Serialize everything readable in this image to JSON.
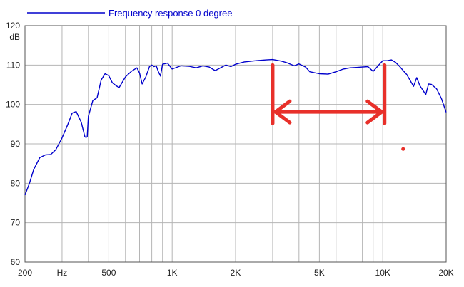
{
  "chart_data": {
    "type": "line",
    "title": "",
    "xlabel": "Hz",
    "ylabel": "dB",
    "x_scale": "log",
    "xlim": [
      200,
      20000
    ],
    "ylim": [
      60,
      120
    ],
    "grid": true,
    "legend": "top-left",
    "x_tick_labels": [
      {
        "value": 200,
        "label": "200"
      },
      {
        "value": 500,
        "label": "500"
      },
      {
        "value": 1000,
        "label": "1K"
      },
      {
        "value": 2000,
        "label": "2K"
      },
      {
        "value": 5000,
        "label": "5K"
      },
      {
        "value": 10000,
        "label": "10K"
      },
      {
        "value": 20000,
        "label": "20K"
      }
    ],
    "x_unit_label_at": 300,
    "x_gridlines": [
      200,
      300,
      400,
      500,
      600,
      700,
      800,
      900,
      1000,
      2000,
      3000,
      4000,
      5000,
      6000,
      7000,
      8000,
      9000,
      10000,
      20000
    ],
    "y_ticks": [
      60,
      70,
      80,
      90,
      100,
      110,
      120
    ],
    "y_tick_labels": [
      "60",
      "70",
      "80",
      "90",
      "100",
      "110",
      "120"
    ],
    "series": [
      {
        "name": "Frequency response 0 degree",
        "color": "#0000cc",
        "x": [
          200,
          210,
          220,
          235,
          250,
          265,
          280,
          300,
          320,
          335,
          350,
          370,
          385,
          390,
          395,
          400,
          420,
          440,
          460,
          480,
          500,
          520,
          540,
          560,
          600,
          640,
          680,
          700,
          720,
          750,
          780,
          800,
          820,
          840,
          860,
          880,
          900,
          950,
          1000,
          1100,
          1200,
          1300,
          1400,
          1500,
          1600,
          1800,
          1900,
          2000,
          2200,
          2500,
          2800,
          3000,
          3300,
          3500,
          3800,
          4000,
          4300,
          4500,
          5000,
          5500,
          6000,
          6500,
          7000,
          7500,
          8000,
          8500,
          9000,
          9500,
          10000,
          10500,
          11000,
          11500,
          12000,
          12500,
          13000,
          14000,
          14500,
          15000,
          16000,
          16500,
          17000,
          18000,
          19000,
          20000
        ],
        "values": [
          77.0,
          80.0,
          83.5,
          86.5,
          87.2,
          87.3,
          88.5,
          91.5,
          95.0,
          97.8,
          98.2,
          95.5,
          91.8,
          91.6,
          91.8,
          97.0,
          101.0,
          101.7,
          106.2,
          107.8,
          107.3,
          105.5,
          104.8,
          104.3,
          107.0,
          108.4,
          109.3,
          108.0,
          105.2,
          107.0,
          109.6,
          110.0,
          109.6,
          109.8,
          108.3,
          107.2,
          110.2,
          110.5,
          109.0,
          109.8,
          109.7,
          109.3,
          109.8,
          109.5,
          108.6,
          110.0,
          109.6,
          110.2,
          110.8,
          111.1,
          111.3,
          111.4,
          111.0,
          110.6,
          109.8,
          110.3,
          109.5,
          108.3,
          107.8,
          107.7,
          108.3,
          109.0,
          109.3,
          109.4,
          109.5,
          109.6,
          108.4,
          109.8,
          111.1,
          111.1,
          111.3,
          110.7,
          109.7,
          108.6,
          107.6,
          104.6,
          106.8,
          104.8,
          102.5,
          105.2,
          105.1,
          104.0,
          101.5,
          98.0
        ]
      }
    ],
    "annotations": [
      {
        "kind": "bracket-arrow",
        "color": "#e8302a",
        "x_from": 3000,
        "x_to": 10200,
        "y_top": 110,
        "y_bottom": 95.2,
        "y_arrow": 98.1
      },
      {
        "kind": "dot",
        "color": "#e8302a",
        "x": 12500,
        "y": 88.7
      }
    ]
  }
}
